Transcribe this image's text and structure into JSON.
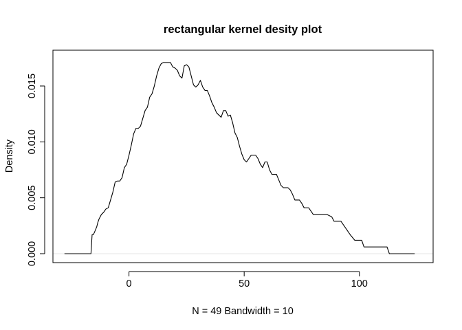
{
  "chart_data": {
    "type": "line",
    "title": "rectangular kernel desity plot",
    "xlabel": "N = 49   Bandwidth = 10",
    "ylabel": "Density",
    "xlim": [
      -33,
      132
    ],
    "ylim": [
      -0.0008,
      0.0182
    ],
    "x_ticks": [
      0,
      50,
      100
    ],
    "y_ticks": [
      0.0,
      0.005,
      0.01,
      0.015
    ],
    "x_tick_labels": [
      "0",
      "50",
      "100"
    ],
    "y_tick_labels": [
      "0.000",
      "0.005",
      "0.010",
      "0.015"
    ],
    "grid": false,
    "legend": "none",
    "line_color": "#000000",
    "series": [
      {
        "x": [
          -28,
          -16.5,
          -16,
          -15.5,
          -15,
          -14,
          -13.5,
          -13,
          -12,
          -11,
          -10,
          -9,
          -8,
          -7,
          -6,
          -5,
          -4,
          -3,
          -2,
          -1,
          0,
          1,
          2,
          3,
          4,
          5,
          6,
          7,
          8,
          9,
          10,
          11,
          12,
          13,
          14,
          15,
          16,
          17,
          18,
          19,
          20,
          21,
          22,
          23,
          24,
          25,
          26,
          27,
          28,
          29,
          30,
          31,
          32,
          33,
          34,
          35,
          36,
          37,
          38,
          39,
          40,
          41,
          42,
          43,
          44,
          45,
          46,
          47,
          48,
          49,
          50,
          51,
          52,
          53,
          54,
          55,
          56,
          57,
          58,
          59,
          60,
          61,
          62,
          63,
          64,
          65,
          66,
          67,
          68,
          69,
          70,
          71,
          72,
          73,
          74,
          75,
          76,
          77,
          78,
          79,
          80,
          82,
          84,
          86,
          88,
          89,
          91,
          92,
          94,
          96,
          98,
          100,
          101,
          102,
          104,
          106,
          108,
          110,
          112,
          113,
          124
        ],
        "y": [
          0.0,
          0.0,
          0.0017,
          0.0017,
          0.0019,
          0.0024,
          0.0028,
          0.0031,
          0.0035,
          0.0037,
          0.004,
          0.0041,
          0.0048,
          0.0055,
          0.0064,
          0.0065,
          0.0065,
          0.0068,
          0.0077,
          0.008,
          0.0088,
          0.0097,
          0.0107,
          0.0112,
          0.0112,
          0.0114,
          0.0121,
          0.0128,
          0.0131,
          0.014,
          0.0143,
          0.015,
          0.0159,
          0.0166,
          0.017,
          0.0171,
          0.0171,
          0.0171,
          0.0171,
          0.0167,
          0.0166,
          0.0164,
          0.0159,
          0.0157,
          0.0168,
          0.0169,
          0.0167,
          0.0159,
          0.0151,
          0.0149,
          0.0151,
          0.0155,
          0.0149,
          0.0146,
          0.0146,
          0.0141,
          0.0135,
          0.0131,
          0.0126,
          0.0124,
          0.0122,
          0.0128,
          0.0128,
          0.0123,
          0.0124,
          0.0117,
          0.0108,
          0.0104,
          0.0096,
          0.0089,
          0.0084,
          0.0082,
          0.0085,
          0.0088,
          0.0088,
          0.0088,
          0.0085,
          0.008,
          0.0077,
          0.0082,
          0.0082,
          0.0075,
          0.0071,
          0.0071,
          0.0071,
          0.0066,
          0.0061,
          0.0059,
          0.0059,
          0.0059,
          0.0057,
          0.0053,
          0.0048,
          0.0048,
          0.0048,
          0.0045,
          0.0041,
          0.0041,
          0.0041,
          0.0038,
          0.0035,
          0.0035,
          0.0035,
          0.0035,
          0.0033,
          0.0029,
          0.0029,
          0.0029,
          0.0023,
          0.0017,
          0.0012,
          0.0012,
          0.0012,
          0.0006,
          0.0006,
          0.0006,
          0.0006,
          0.0006,
          0.0006,
          0.0,
          0.0
        ]
      }
    ]
  }
}
